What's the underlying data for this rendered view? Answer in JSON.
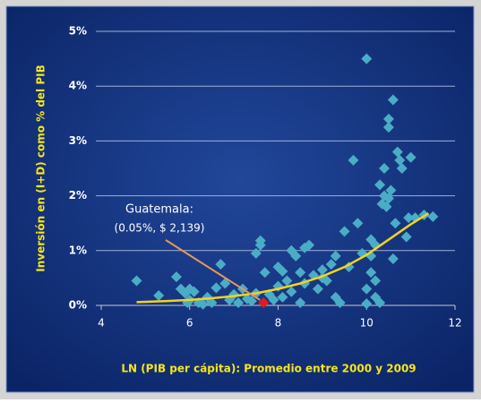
{
  "chart_data": {
    "type": "scatter",
    "y_label": "Inversión en (I+D) como % del PIB",
    "x_label": "LN (PIB per cápita):  Promedio entre 2000 y 2009",
    "color": "#4bacc6",
    "x": [
      4.8,
      5.3,
      5.7,
      5.8,
      5.9,
      5.95,
      6.0,
      6.0,
      6.1,
      6.2,
      6.3,
      6.4,
      6.5,
      6.6,
      6.7,
      6.8,
      6.9,
      7.0,
      7.1,
      7.2,
      7.3,
      7.4,
      7.5,
      7.5,
      7.6,
      7.6,
      7.7,
      7.8,
      7.9,
      8.0,
      8.0,
      8.1,
      8.1,
      8.2,
      8.3,
      8.3,
      8.4,
      8.5,
      8.5,
      8.6,
      8.6,
      8.7,
      8.8,
      8.9,
      9.0,
      9.0,
      9.1,
      9.2,
      9.3,
      9.3,
      9.4,
      9.5,
      9.6,
      9.7,
      9.8,
      9.9,
      10.0,
      10.0,
      10.0,
      10.1,
      10.1,
      10.1,
      10.2,
      10.2,
      10.2,
      10.3,
      10.3,
      10.35,
      10.4,
      10.4,
      10.45,
      10.5,
      10.5,
      10.5,
      10.55,
      10.6,
      10.6,
      10.65,
      10.7,
      10.75,
      10.8,
      10.9,
      10.95,
      11.0,
      11.1,
      11.3,
      11.5
    ],
    "values": [
      0.45,
      0.18,
      0.52,
      0.3,
      0.22,
      0.05,
      0.1,
      0.3,
      0.25,
      0.05,
      0.02,
      0.15,
      0.05,
      0.32,
      0.75,
      0.4,
      0.1,
      0.2,
      0.05,
      0.3,
      0.12,
      0.08,
      0.22,
      0.95,
      1.1,
      1.18,
      0.6,
      0.2,
      0.1,
      0.7,
      0.35,
      0.62,
      0.15,
      0.45,
      1.0,
      0.25,
      0.9,
      0.05,
      0.6,
      1.05,
      0.4,
      1.1,
      0.55,
      0.3,
      0.65,
      0.5,
      0.45,
      0.75,
      0.9,
      0.15,
      0.05,
      1.35,
      0.7,
      2.65,
      1.5,
      0.95,
      4.5,
      0.3,
      0.03,
      0.9,
      1.2,
      0.6,
      0.45,
      1.1,
      0.15,
      2.2,
      0.05,
      1.85,
      2.5,
      2.0,
      1.8,
      3.25,
      3.4,
      1.95,
      2.1,
      3.75,
      0.85,
      1.5,
      2.8,
      2.65,
      2.5,
      1.25,
      1.6,
      2.7,
      1.6,
      1.65,
      1.62
    ],
    "trendline": {
      "color": "#f5d31a",
      "x": [
        4.8,
        5.5,
        6,
        6.5,
        7,
        7.5,
        8,
        8.5,
        9,
        9.5,
        10,
        10.5,
        11,
        11.4
      ],
      "values": [
        0.06,
        0.08,
        0.1,
        0.13,
        0.17,
        0.22,
        0.3,
        0.4,
        0.53,
        0.7,
        0.92,
        1.2,
        1.48,
        1.68
      ]
    },
    "annotation": {
      "label": "Guatemala:",
      "text": "(0.05%, $ 2,139)",
      "x": 7.67,
      "y": 0.05,
      "color": "#e41a1c",
      "line_color": "#e8965a"
    },
    "xlim": [
      4,
      12
    ],
    "xticks": [
      4,
      6,
      8,
      10,
      12
    ],
    "ylim": [
      0,
      5
    ],
    "yticks": [
      {
        "value": 0,
        "label": "0%"
      },
      {
        "value": 1,
        "label": "1%"
      },
      {
        "value": 2,
        "label": "2%"
      },
      {
        "value": 3,
        "label": "3%"
      },
      {
        "value": 4,
        "label": "4%"
      },
      {
        "value": 5,
        "label": "5%"
      }
    ],
    "grid": true
  }
}
